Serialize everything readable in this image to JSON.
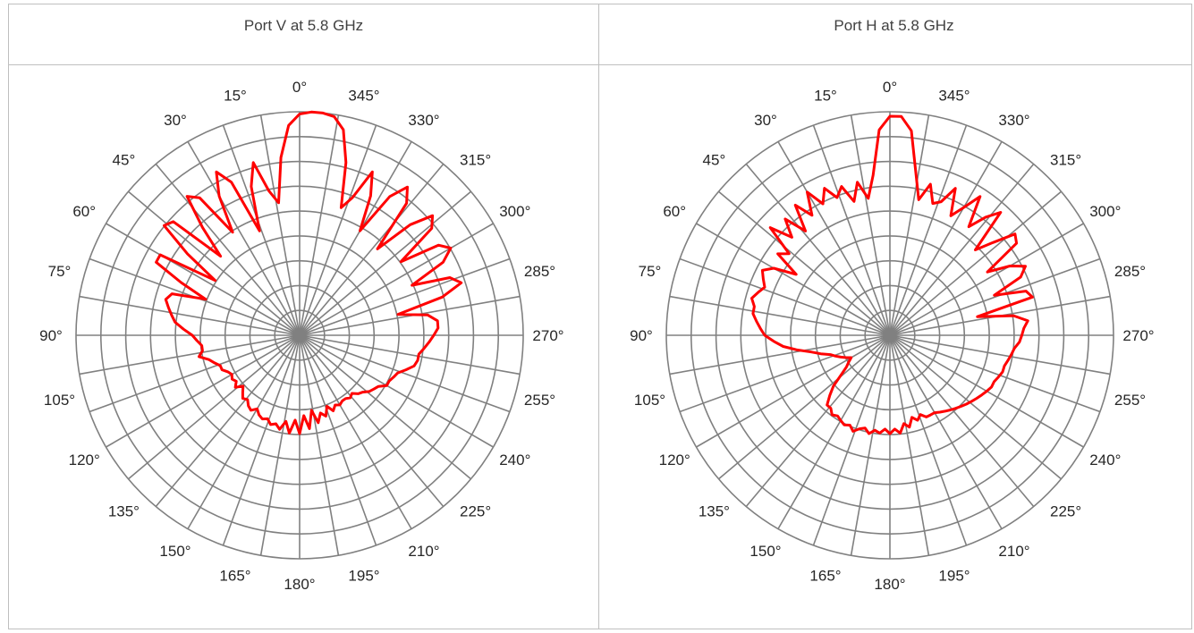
{
  "panels": [
    {
      "title": "Port V at 5.8 GHz"
    },
    {
      "title": "Port H at 5.8 GHz"
    }
  ],
  "chart_data": [
    {
      "type": "polar",
      "title": "Port V at 5.8 GHz",
      "angle_labels": [
        "0°",
        "15°",
        "30°",
        "45°",
        "60°",
        "75°",
        "90°",
        "105°",
        "120°",
        "135°",
        "150°",
        "165°",
        "180°",
        "195°",
        "210°",
        "225°",
        "240°",
        "255°",
        "270°",
        "285°",
        "300°",
        "315°",
        "330°",
        "345°"
      ],
      "angle_direction": "counter-clockwise from top",
      "rings": 9,
      "radial_max": 1.0,
      "line_color": "#ff0000",
      "grid_color": "#808080",
      "series": [
        {
          "angle_deg": [
            0,
            3,
            6,
            9,
            12,
            15,
            18,
            21,
            24,
            27,
            30,
            33,
            36,
            39,
            42,
            45,
            48,
            51,
            54,
            57,
            60,
            63,
            66,
            69,
            72,
            75,
            78,
            81,
            84,
            87,
            90,
            93,
            96,
            99,
            102,
            105,
            108,
            111,
            114,
            117,
            120,
            123,
            126,
            129,
            132,
            135,
            138,
            141,
            144,
            147,
            150,
            153,
            156,
            159,
            162,
            165,
            168,
            171,
            174,
            177,
            180,
            183,
            186,
            189,
            192,
            195,
            198,
            201,
            204,
            207,
            210,
            213,
            216,
            219,
            222,
            225,
            228,
            231,
            234,
            237,
            240,
            243,
            246,
            249,
            252,
            255,
            258,
            261,
            264,
            267,
            270,
            273,
            276,
            279,
            282,
            285,
            288,
            291,
            294,
            297,
            300,
            303,
            306,
            309,
            312,
            315,
            318,
            321,
            324,
            327,
            330,
            333,
            336,
            339,
            342,
            345,
            348,
            351,
            354,
            357
          ],
          "r": [
            0.99,
            0.94,
            0.8,
            0.6,
            0.66,
            0.8,
            0.7,
            0.5,
            0.75,
            0.82,
            0.72,
            0.55,
            0.76,
            0.8,
            0.65,
            0.5,
            0.76,
            0.78,
            0.62,
            0.45,
            0.72,
            0.72,
            0.58,
            0.45,
            0.6,
            0.62,
            0.6,
            0.58,
            0.56,
            0.52,
            0.48,
            0.46,
            0.44,
            0.44,
            0.46,
            0.42,
            0.4,
            0.38,
            0.38,
            0.36,
            0.35,
            0.36,
            0.35,
            0.37,
            0.34,
            0.36,
            0.38,
            0.37,
            0.39,
            0.4,
            0.38,
            0.4,
            0.41,
            0.4,
            0.42,
            0.41,
            0.43,
            0.39,
            0.44,
            0.38,
            0.44,
            0.36,
            0.42,
            0.34,
            0.4,
            0.36,
            0.38,
            0.34,
            0.37,
            0.35,
            0.36,
            0.35,
            0.35,
            0.36,
            0.35,
            0.37,
            0.38,
            0.4,
            0.41,
            0.42,
            0.45,
            0.45,
            0.46,
            0.47,
            0.5,
            0.53,
            0.54,
            0.54,
            0.56,
            0.58,
            0.6,
            0.62,
            0.62,
            0.58,
            0.45,
            0.66,
            0.76,
            0.72,
            0.55,
            0.72,
            0.78,
            0.74,
            0.56,
            0.76,
            0.8,
            0.7,
            0.52,
            0.76,
            0.82,
            0.74,
            0.54,
            0.7,
            0.8,
            0.66,
            0.6,
            0.8,
            0.94,
            0.99,
            1.0,
            1.0
          ]
        }
      ]
    },
    {
      "type": "polar",
      "title": "Port H at 5.8 GHz",
      "angle_labels": [
        "0°",
        "15°",
        "30°",
        "45°",
        "60°",
        "75°",
        "90°",
        "105°",
        "120°",
        "135°",
        "150°",
        "165°",
        "180°",
        "195°",
        "210°",
        "225°",
        "240°",
        "255°",
        "270°",
        "285°",
        "300°",
        "315°",
        "330°",
        "345°"
      ],
      "angle_direction": "counter-clockwise from top",
      "rings": 9,
      "radial_max": 1.0,
      "line_color": "#ff0000",
      "grid_color": "#808080",
      "series": [
        {
          "angle_deg": [
            0,
            3,
            6,
            9,
            12,
            15,
            18,
            21,
            24,
            27,
            30,
            33,
            36,
            39,
            42,
            45,
            48,
            51,
            54,
            57,
            60,
            63,
            66,
            69,
            72,
            75,
            78,
            81,
            84,
            87,
            90,
            93,
            96,
            99,
            102,
            105,
            108,
            111,
            114,
            117,
            120,
            123,
            126,
            129,
            132,
            135,
            138,
            141,
            144,
            147,
            150,
            153,
            156,
            159,
            162,
            165,
            168,
            171,
            174,
            177,
            180,
            183,
            186,
            189,
            192,
            195,
            198,
            201,
            204,
            207,
            210,
            213,
            216,
            219,
            222,
            225,
            228,
            231,
            234,
            237,
            240,
            243,
            246,
            249,
            252,
            255,
            258,
            261,
            264,
            267,
            270,
            273,
            276,
            279,
            282,
            285,
            288,
            291,
            294,
            297,
            300,
            303,
            306,
            309,
            312,
            315,
            318,
            321,
            324,
            327,
            330,
            333,
            336,
            339,
            342,
            345,
            348,
            351,
            354,
            357
          ],
          "r": [
            0.98,
            0.92,
            0.72,
            0.62,
            0.7,
            0.62,
            0.7,
            0.66,
            0.72,
            0.66,
            0.74,
            0.64,
            0.72,
            0.6,
            0.7,
            0.62,
            0.72,
            0.58,
            0.62,
            0.5,
            0.6,
            0.64,
            0.62,
            0.6,
            0.62,
            0.64,
            0.62,
            0.62,
            0.6,
            0.58,
            0.56,
            0.52,
            0.48,
            0.42,
            0.36,
            0.32,
            0.28,
            0.26,
            0.24,
            0.22,
            0.2,
            0.22,
            0.24,
            0.28,
            0.34,
            0.38,
            0.42,
            0.42,
            0.44,
            0.43,
            0.44,
            0.45,
            0.44,
            0.46,
            0.44,
            0.43,
            0.45,
            0.43,
            0.44,
            0.42,
            0.44,
            0.42,
            0.44,
            0.4,
            0.42,
            0.38,
            0.4,
            0.38,
            0.4,
            0.4,
            0.4,
            0.41,
            0.42,
            0.43,
            0.44,
            0.45,
            0.46,
            0.47,
            0.48,
            0.49,
            0.5,
            0.51,
            0.51,
            0.52,
            0.53,
            0.53,
            0.54,
            0.55,
            0.56,
            0.58,
            0.59,
            0.6,
            0.62,
            0.56,
            0.4,
            0.66,
            0.64,
            0.5,
            0.64,
            0.68,
            0.62,
            0.52,
            0.7,
            0.72,
            0.62,
            0.54,
            0.74,
            0.68,
            0.6,
            0.74,
            0.66,
            0.6,
            0.72,
            0.64,
            0.62,
            0.7,
            0.62,
            0.74,
            0.92,
            0.98
          ]
        }
      ]
    }
  ]
}
